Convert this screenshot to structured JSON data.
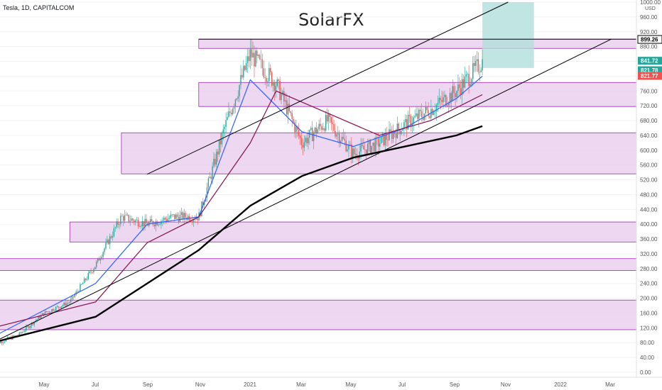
{
  "symbol": "Tesla, 1D, CAPITALCOM",
  "watermark": "SolarFX",
  "chart_data": {
    "type": "candlestick",
    "title": "SolarFX",
    "currency": "USD",
    "y_range": [
      0,
      1000
    ],
    "y_ticks": [
      "1000.00",
      "960.00",
      "920.00",
      "880.00",
      "840.00",
      "800.00",
      "760.00",
      "720.00",
      "680.00",
      "640.00",
      "600.00",
      "560.00",
      "520.00",
      "480.00",
      "440.00",
      "400.00",
      "360.00",
      "320.00",
      "280.00",
      "240.00",
      "200.00",
      "160.00",
      "120.00",
      "80.00",
      "40.00",
      "0.00"
    ],
    "x_ticks": [
      "May",
      "Jul",
      "Sep",
      "Nov",
      "2021",
      "Mar",
      "May",
      "Jul",
      "Sep",
      "Nov",
      "2022",
      "Mar"
    ],
    "price_tags": [
      {
        "label": "899.26",
        "value": 899.26,
        "color": "#000000"
      },
      {
        "label": "841.72",
        "value": 841.72,
        "color": "#26a69a"
      },
      {
        "label": "821.78",
        "value": 821.78,
        "color": "#26a69a"
      },
      {
        "label": "821.77",
        "value": 821.77,
        "color": "#ef5350"
      }
    ],
    "zones": [
      {
        "from": "Aug 2020",
        "to": "end",
        "low": 536,
        "high": 647
      },
      {
        "from": "Jan 2020",
        "to": "end",
        "low": 115,
        "high": 195
      },
      {
        "from": "Mar 2020",
        "to": "end",
        "low": 275,
        "high": 307
      },
      {
        "from": "Jun 2020",
        "to": "end",
        "low": 352,
        "high": 406
      },
      {
        "from": "Nov 2020",
        "to": "end",
        "low": 718,
        "high": 783
      },
      {
        "from": "Nov 2020",
        "to": "end",
        "low": 875,
        "high": 900
      }
    ],
    "price_series": [
      {
        "date": "Mar 2020",
        "value": 75
      },
      {
        "date": "Apr 2020",
        "value": 100
      },
      {
        "date": "May 2020",
        "value": 160
      },
      {
        "date": "Jun 2020",
        "value": 190
      },
      {
        "date": "Jul 2020",
        "value": 290
      },
      {
        "date": "Aug 2020",
        "value": 420
      },
      {
        "date": "Sep 2020",
        "value": 400
      },
      {
        "date": "Oct 2020",
        "value": 420
      },
      {
        "date": "Nov 2020",
        "value": 420
      },
      {
        "date": "Dec 2020",
        "value": 660
      },
      {
        "date": "Jan 2021",
        "value": 860
      },
      {
        "date": "Feb 2021",
        "value": 780
      },
      {
        "date": "Mar 2021",
        "value": 620
      },
      {
        "date": "Apr 2021",
        "value": 680
      },
      {
        "date": "May 2021",
        "value": 590
      },
      {
        "date": "Jun 2021",
        "value": 620
      },
      {
        "date": "Jul 2021",
        "value": 670
      },
      {
        "date": "Aug 2021",
        "value": 710
      },
      {
        "date": "Sep 2021",
        "value": 760
      },
      {
        "date": "Oct 2021",
        "value": 840
      }
    ],
    "moving_averages": [
      {
        "color": "#2962ff",
        "values": [
          {
            "date": "Mar 2020",
            "value": 95
          },
          {
            "date": "Jul 2020",
            "value": 240
          },
          {
            "date": "Sep 2020",
            "value": 400
          },
          {
            "date": "Nov 2020",
            "value": 420
          },
          {
            "date": "Jan 2021",
            "value": 790
          },
          {
            "date": "Mar 2021",
            "value": 650
          },
          {
            "date": "May 2021",
            "value": 610
          },
          {
            "date": "Jul 2021",
            "value": 660
          },
          {
            "date": "Sep 2021",
            "value": 740
          },
          {
            "date": "Oct 2021",
            "value": 800
          }
        ]
      },
      {
        "color": "#880e4f",
        "values": [
          {
            "date": "Mar 2020",
            "value": 120
          },
          {
            "date": "Jul 2020",
            "value": 190
          },
          {
            "date": "Sep 2020",
            "value": 350
          },
          {
            "date": "Nov 2020",
            "value": 420
          },
          {
            "date": "Jan 2021",
            "value": 620
          },
          {
            "date": "Feb 2021",
            "value": 760
          },
          {
            "date": "Apr 2021",
            "value": 700
          },
          {
            "date": "Jun 2021",
            "value": 640
          },
          {
            "date": "Aug 2021",
            "value": 680
          },
          {
            "date": "Oct 2021",
            "value": 750
          }
        ]
      },
      {
        "color": "#000000",
        "values": [
          {
            "date": "Mar 2020",
            "value": 80
          },
          {
            "date": "Jul 2020",
            "value": 150
          },
          {
            "date": "Sep 2020",
            "value": 240
          },
          {
            "date": "Nov 2020",
            "value": 330
          },
          {
            "date": "Jan 2021",
            "value": 450
          },
          {
            "date": "Mar 2021",
            "value": 530
          },
          {
            "date": "May 2021",
            "value": 580
          },
          {
            "date": "Jul 2021",
            "value": 610
          },
          {
            "date": "Sep 2021",
            "value": 640
          },
          {
            "date": "Oct 2021",
            "value": 665
          }
        ]
      }
    ],
    "trendlines": [
      {
        "from": {
          "date": "Sep 2020",
          "value": 535
        },
        "to": {
          "date": "Nov 2021",
          "value": 1000
        }
      },
      {
        "from": {
          "date": "Mar 2020",
          "value": 80
        },
        "to": {
          "date": "Mar 2022",
          "value": 900
        }
      },
      {
        "from": {
          "date": "Nov 2020",
          "value": 900
        },
        "to": {
          "date": "end",
          "value": 900
        }
      }
    ],
    "projection": {
      "from": "Oct 2021",
      "to": "Dec 2021",
      "low": 822,
      "high": 1000
    },
    "colors": {
      "zone_fill": "#e8c9ec",
      "zone_stroke": "#9c27b0",
      "up": "#26a69a",
      "down": "#ef5350",
      "projection": "#b2dfdb"
    }
  }
}
